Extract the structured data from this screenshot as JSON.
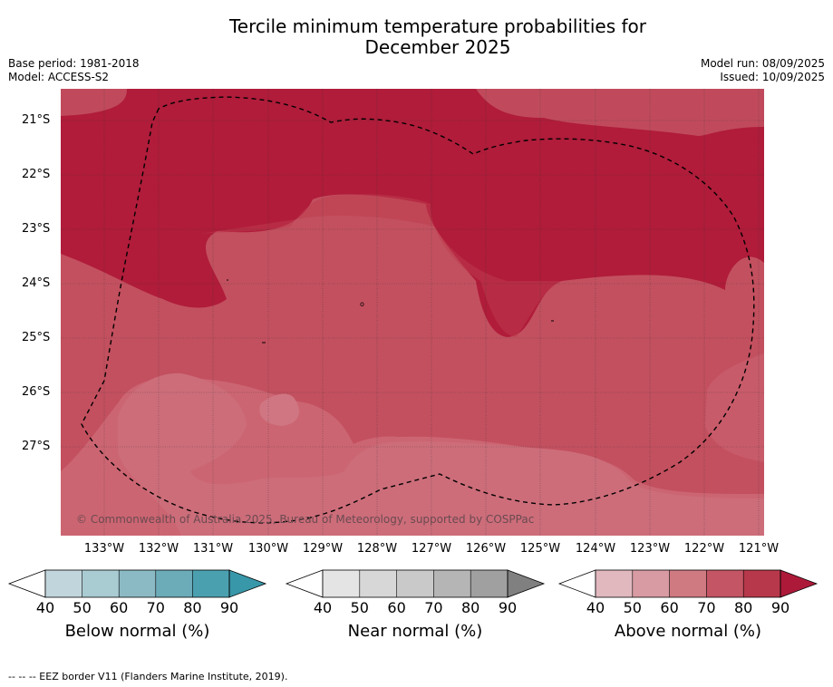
{
  "title_line1": "Tercile minimum temperature probabilities for",
  "title_line2": "December 2025",
  "meta": {
    "base_period": "Base period: 1981-2018",
    "model": "Model: ACCESS-S2",
    "model_run": "Model run: 08/09/2025",
    "issued": "Issued: 10/09/2025"
  },
  "map": {
    "lat_labels": [
      "21°S",
      "22°S",
      "23°S",
      "24°S",
      "25°S",
      "26°S",
      "27°S"
    ],
    "lon_labels": [
      "133°W",
      "132°W",
      "131°W",
      "130°W",
      "129°W",
      "128°W",
      "127°W",
      "126°W",
      "125°W",
      "124°W",
      "123°W",
      "122°W",
      "121°W"
    ],
    "copyright": "© Commonwealth of Australia 2025, Bureau of Meteorology, supported by COSPPac",
    "border_line": "EEZ border V11",
    "dominant_category": "Above normal",
    "colors": {
      "above_40": "#e0b8be",
      "above_50": "#d89ba3",
      "above_60": "#cf6e79",
      "above_70": "#c3505f",
      "above_80": "#b7384a",
      "above_90": "#ad1a39",
      "near_40": "#e4e4e4",
      "near_90": "#808080",
      "below_40": "#bfd5db",
      "below_90": "#3797a8"
    }
  },
  "colorbars": [
    {
      "title": "Below normal (%)",
      "ticks": [
        "40",
        "50",
        "60",
        "70",
        "80",
        "90"
      ],
      "colors": [
        "#c0d6dc",
        "#a9cbd2",
        "#8cbac4",
        "#6cabb8",
        "#4ba0b0",
        "#3897a8"
      ]
    },
    {
      "title": "Near normal (%)",
      "ticks": [
        "40",
        "50",
        "60",
        "70",
        "80",
        "90"
      ],
      "colors": [
        "#e4e4e4",
        "#d7d7d7",
        "#c9c9c9",
        "#b5b5b5",
        "#a0a0a0",
        "#808080"
      ]
    },
    {
      "title": "Above normal (%)",
      "ticks": [
        "40",
        "50",
        "60",
        "70",
        "80",
        "90"
      ],
      "colors": [
        "#e0b8be",
        "#d89ba3",
        "#cf7980",
        "#c45565",
        "#b7384a",
        "#ad1a39"
      ]
    }
  ],
  "footnote": "--  --  -- EEZ border V11 (Flanders Marine Institute, 2019)."
}
